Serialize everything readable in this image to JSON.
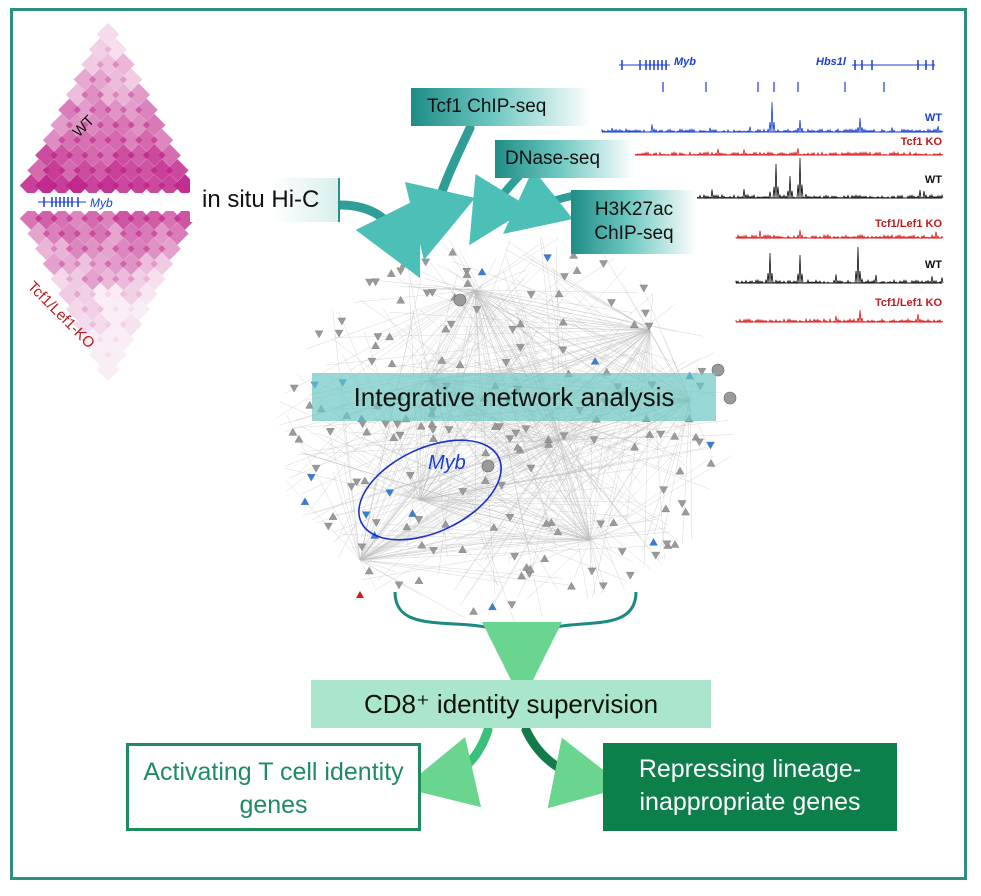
{
  "hic": {
    "label": "in situ Hi-C",
    "wt_label": "WT",
    "gene_label": "Myb",
    "ko_label": "Tcf1/Lef1-KO"
  },
  "inputs": {
    "tcf1": "Tcf1 ChIP-seq",
    "dnase": "DNase-seq",
    "h3k27ac_line1": "H3K27ac",
    "h3k27ac_line2": "ChIP-seq"
  },
  "tracks": {
    "genes": [
      "Myb",
      "Hbs1l"
    ],
    "rows": [
      {
        "label": "WT",
        "color": "#1a3fd0"
      },
      {
        "label": "Tcf1 KO",
        "color": "#c0191b"
      },
      {
        "label": "WT",
        "color": "#111111"
      },
      {
        "label": "Tcf1/Lef1 KO",
        "color": "#c0191b"
      },
      {
        "label": "WT",
        "color": "#111111"
      },
      {
        "label": "Tcf1/Lef1 KO",
        "color": "#c0191b"
      }
    ]
  },
  "network": {
    "title": "Integrative network analysis",
    "highlight_gene": "Myb"
  },
  "outcome": {
    "title": "CD8⁺ identity supervision",
    "activating": "Activating T cell identity genes",
    "repressing": "Repressing lineage-inappropriate genes"
  },
  "colors": {
    "frame": "#2b8f86",
    "teal": "#1f8c86",
    "heatmap": "#c0258a",
    "activating": "#1f8c5e",
    "repressing": "#0d7f4b",
    "cd8_box": "#a9e6cc"
  }
}
